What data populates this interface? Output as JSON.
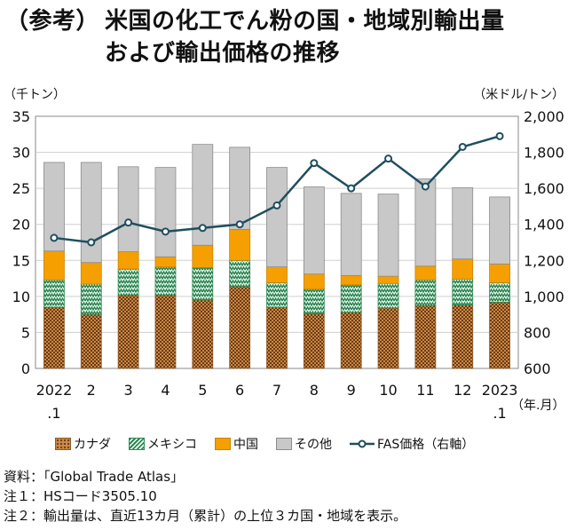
{
  "header": {
    "prefix": "（参考）",
    "line1": "米国の化工でん粉の国・地域別輸出量",
    "line2": "および輸出価格の推移"
  },
  "chart_data": {
    "type": "bar",
    "stacked": true,
    "categories": [
      "2022",
      "2",
      "3",
      "4",
      "5",
      "6",
      "7",
      "8",
      "9",
      "10",
      "11",
      "12",
      "2023"
    ],
    "category_sublabels": [
      ".1",
      "",
      "",
      "",
      "",
      "",
      "",
      "",
      "",
      "",
      "",
      "",
      ".1"
    ],
    "x_unit": "（年.月）",
    "y_left": {
      "unit": "（千トン）",
      "range": [
        0,
        35
      ],
      "ticks": [
        0,
        5,
        10,
        15,
        20,
        25,
        30,
        35
      ]
    },
    "y_right": {
      "unit": "（米ドル/トン）",
      "range": [
        600,
        2000
      ],
      "ticks": [
        "600",
        "800",
        "1,000",
        "1,200",
        "1,400",
        "1,600",
        "1,800",
        "2,000"
      ]
    },
    "series": [
      {
        "name": "カナダ",
        "axis": "left",
        "color": "#b5651d",
        "pattern": "dots",
        "values": [
          8.5,
          7.5,
          10.2,
          10.2,
          9.5,
          11.4,
          8.5,
          7.6,
          7.8,
          8.4,
          8.7,
          8.8,
          9.2
        ]
      },
      {
        "name": "メキシコ",
        "axis": "left",
        "color": "#2e8b57",
        "pattern": "zigzag",
        "values": [
          3.8,
          4.2,
          3.6,
          3.9,
          4.5,
          3.6,
          3.4,
          3.4,
          3.8,
          3.4,
          3.6,
          3.6,
          2.7
        ]
      },
      {
        "name": "中国",
        "axis": "left",
        "color": "#f5a000",
        "pattern": "solid",
        "values": [
          4.0,
          3.0,
          2.4,
          1.4,
          3.1,
          4.3,
          2.2,
          2.1,
          1.3,
          1.0,
          1.9,
          2.8,
          2.6
        ]
      },
      {
        "name": "その他",
        "axis": "left",
        "color": "#c8c8c8",
        "pattern": "solid",
        "values": [
          12.3,
          13.9,
          11.8,
          12.4,
          14.0,
          11.4,
          13.8,
          12.1,
          11.4,
          11.4,
          12.1,
          9.9,
          9.3
        ]
      },
      {
        "name": "FAS価格（右軸）",
        "axis": "right",
        "type": "line",
        "color": "#1f4e5f",
        "values": [
          1325,
          1300,
          1410,
          1360,
          1380,
          1400,
          1505,
          1740,
          1600,
          1765,
          1610,
          1830,
          1890
        ]
      }
    ]
  },
  "notes": [
    "資料：「Global Trade Atlas」",
    "注１：HSコード3505.10",
    "注２：輸出量は、直近13カ月（累計）の上位３カ国・地域を表示。"
  ]
}
